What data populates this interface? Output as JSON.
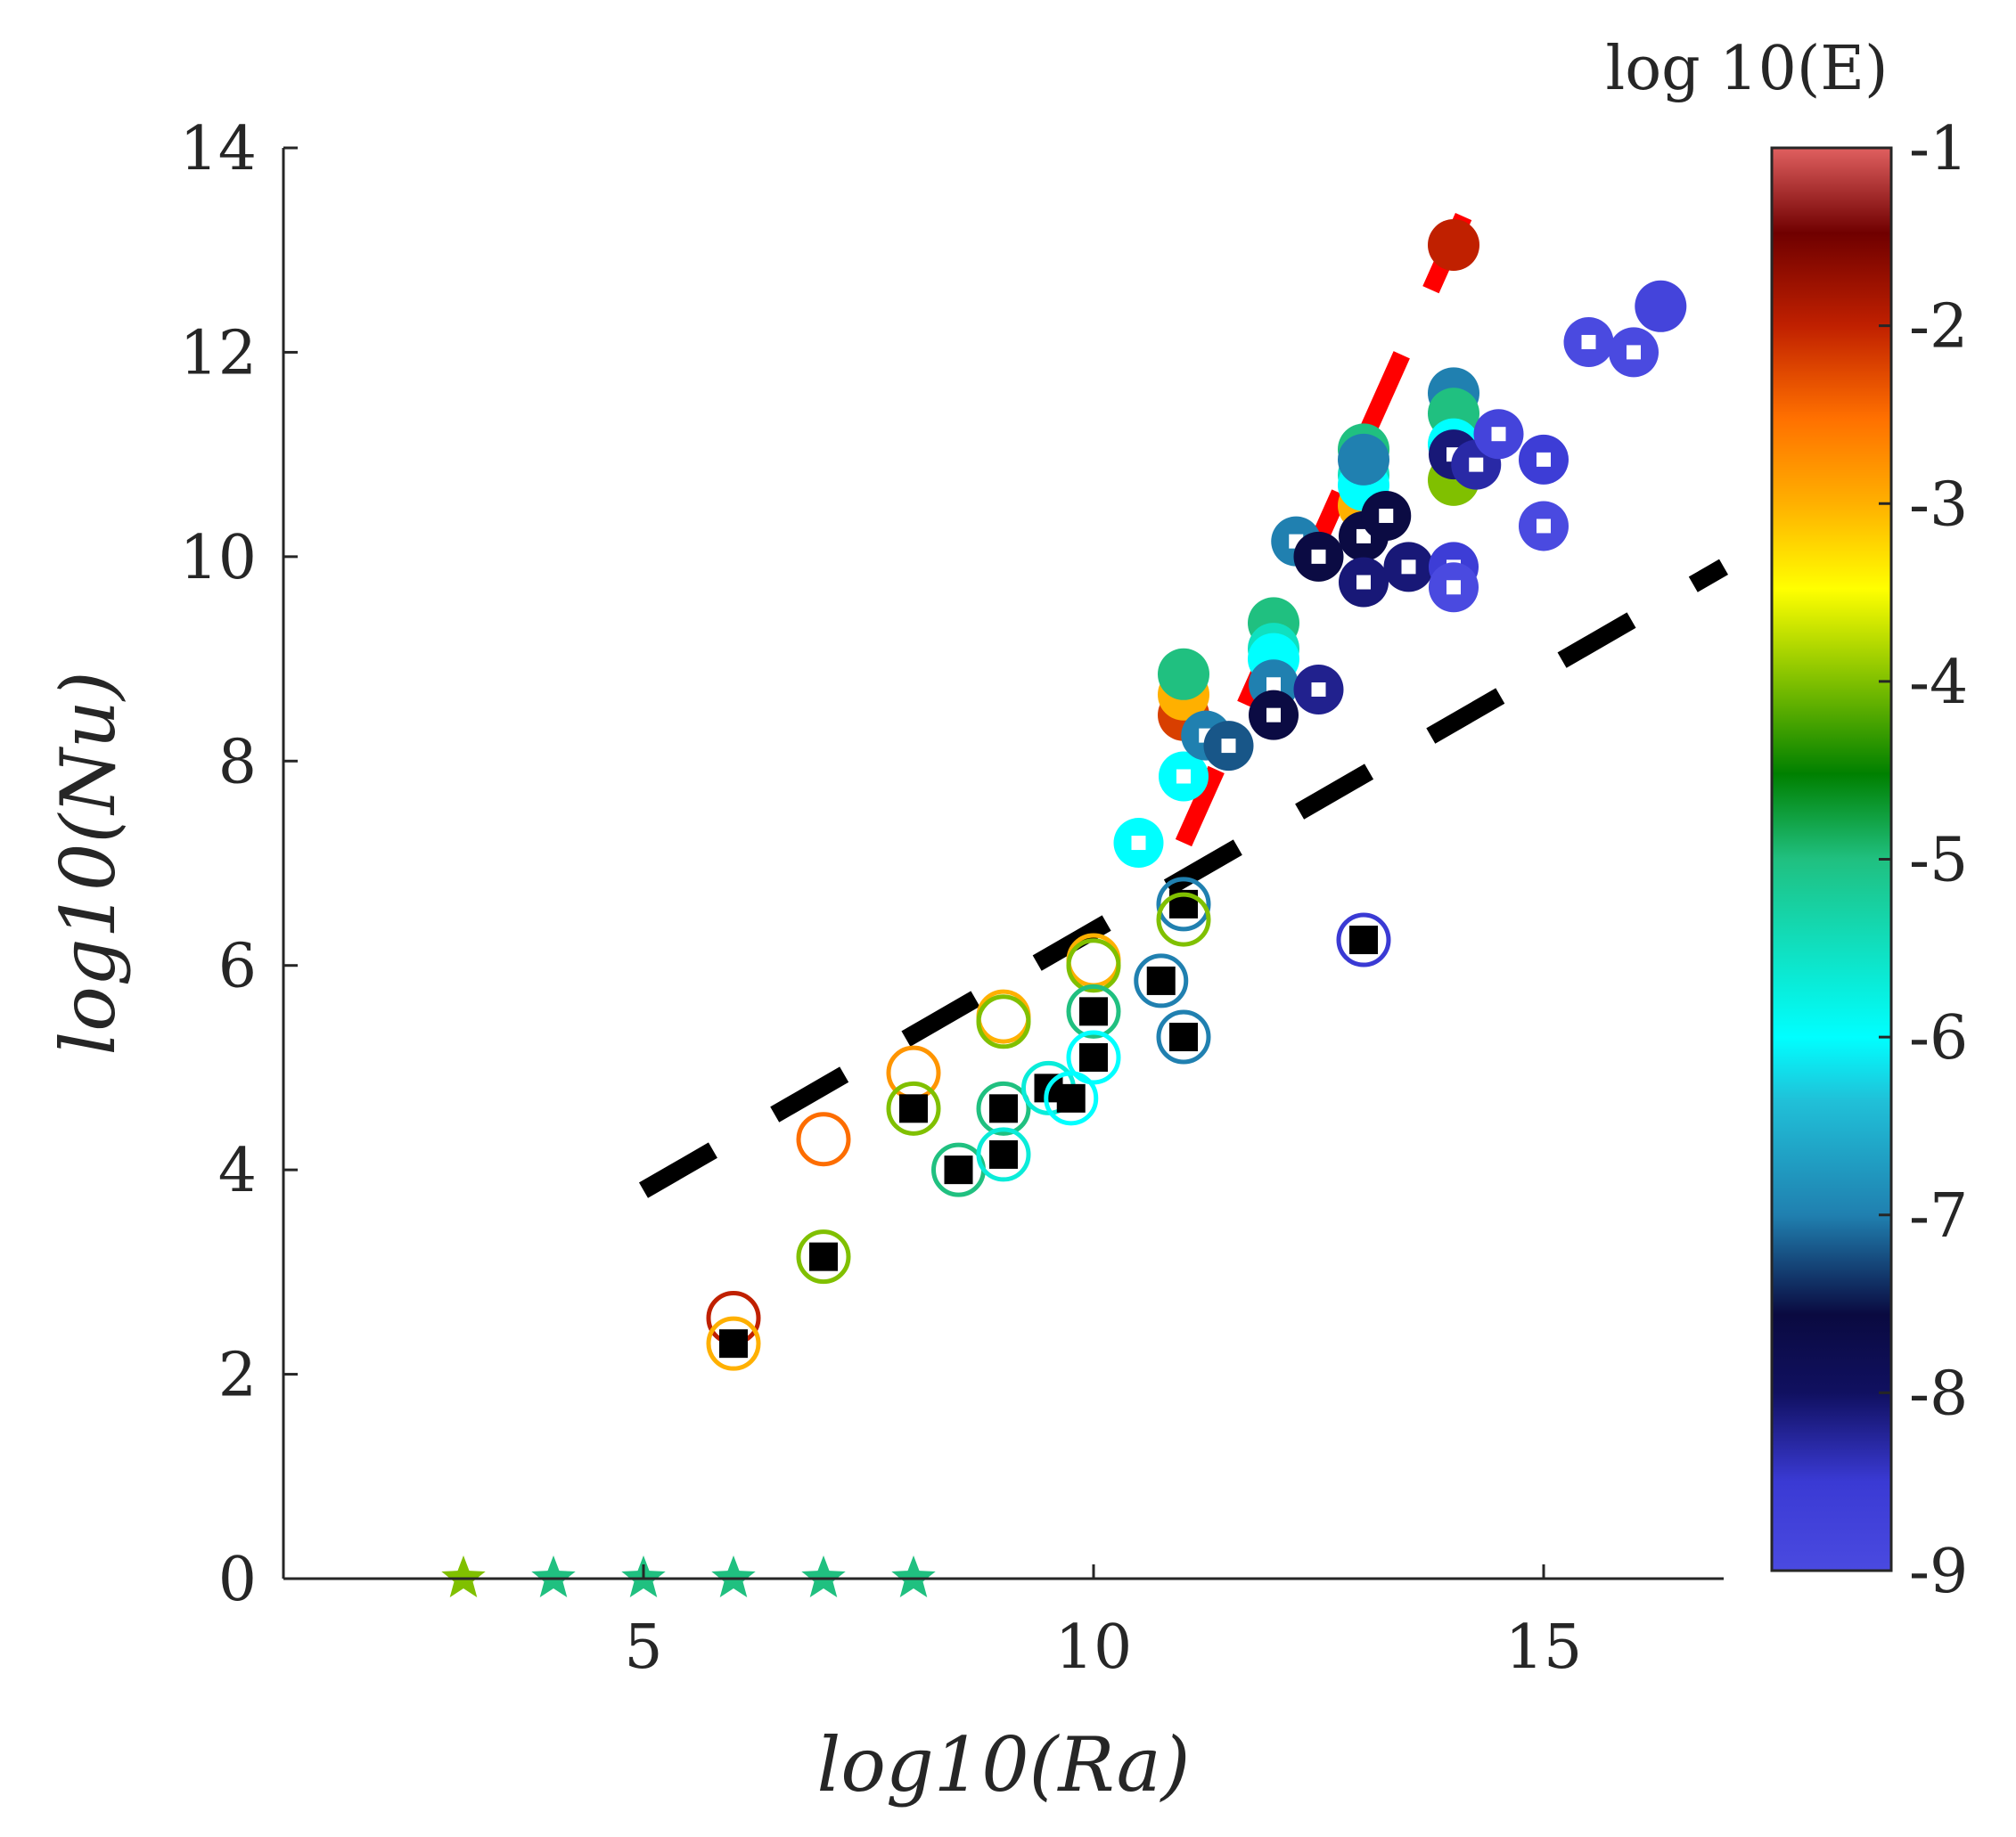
{
  "chart_data": {
    "type": "scatter",
    "xlabel": "log10(Ra)",
    "ylabel": "log10(Nu)",
    "xlim": [
      1,
      17
    ],
    "ylim": [
      0,
      14
    ],
    "xticks": [
      5,
      10,
      15
    ],
    "yticks": [
      0,
      2,
      4,
      6,
      8,
      10,
      12,
      14
    ],
    "grid": false,
    "colorbar": {
      "title": "log 10(E)",
      "range": [
        -9,
        -1
      ],
      "ticks": [
        -1,
        -2,
        -3,
        -4,
        -5,
        -6,
        -7,
        -8,
        -9
      ],
      "colormap": [
        [
          0.0,
          "#4a4ae0"
        ],
        [
          0.0625,
          "#3a3ad4"
        ],
        [
          0.125,
          "#101060"
        ],
        [
          0.18,
          "#0a0a40"
        ],
        [
          0.25,
          "#2080b0"
        ],
        [
          0.33,
          "#20c0d8"
        ],
        [
          0.375,
          "#00ffff"
        ],
        [
          0.5,
          "#20c080"
        ],
        [
          0.56,
          "#008000"
        ],
        [
          0.625,
          "#80c000"
        ],
        [
          0.69,
          "#ffff00"
        ],
        [
          0.75,
          "#ffb000"
        ],
        [
          0.81,
          "#ff7000"
        ],
        [
          0.875,
          "#c02000"
        ],
        [
          0.94,
          "#700000"
        ],
        [
          1.0,
          "#e06060"
        ]
      ]
    },
    "lines": [
      {
        "name": "black-dashed-fit",
        "color": "#000000",
        "x": [
          5,
          17
        ],
        "y": [
          3.8,
          9.9
        ]
      },
      {
        "name": "red-dashed-fit",
        "color": "#ff0000",
        "x": [
          11,
          14.4
        ],
        "y": [
          7.2,
          13.9
        ]
      }
    ],
    "series": [
      {
        "name": "open-circles-with-black-squares",
        "marker": "open-circle",
        "points": [
          {
            "x": 6,
            "y": 2.55,
            "e": -2.0,
            "sq": false
          },
          {
            "x": 6,
            "y": 2.3,
            "e": -3.0,
            "sq": true
          },
          {
            "x": 7,
            "y": 4.3,
            "e": -2.5,
            "sq": false
          },
          {
            "x": 7,
            "y": 3.15,
            "e": -4.0,
            "sq": true
          },
          {
            "x": 8,
            "y": 4.95,
            "e": -2.8,
            "sq": false
          },
          {
            "x": 8,
            "y": 4.6,
            "e": -4.0,
            "sq": true
          },
          {
            "x": 8.5,
            "y": 4.0,
            "e": -5.0,
            "sq": true
          },
          {
            "x": 9,
            "y": 5.5,
            "e": -3.0,
            "sq": false
          },
          {
            "x": 9,
            "y": 5.45,
            "e": -4.0,
            "sq": false
          },
          {
            "x": 9,
            "y": 4.6,
            "e": -5.0,
            "sq": true
          },
          {
            "x": 9,
            "y": 4.15,
            "e": -5.7,
            "sq": true
          },
          {
            "x": 9.5,
            "y": 4.8,
            "e": -5.7,
            "sq": true
          },
          {
            "x": 9.75,
            "y": 4.7,
            "e": -6.0,
            "sq": true
          },
          {
            "x": 10,
            "y": 6.05,
            "e": -3.0,
            "sq": false
          },
          {
            "x": 10,
            "y": 6.0,
            "e": -4.0,
            "sq": false
          },
          {
            "x": 10,
            "y": 5.55,
            "e": -5.0,
            "sq": true
          },
          {
            "x": 10,
            "y": 5.1,
            "e": -6.0,
            "sq": true
          },
          {
            "x": 10.75,
            "y": 5.85,
            "e": -7.0,
            "sq": true
          },
          {
            "x": 11,
            "y": 6.6,
            "e": -7.0,
            "sq": true
          },
          {
            "x": 11,
            "y": 6.45,
            "e": -4.0,
            "sq": false
          },
          {
            "x": 11,
            "y": 5.3,
            "e": -7.0,
            "sq": true
          },
          {
            "x": 13,
            "y": 6.25,
            "e": -8.5,
            "sq": true
          }
        ]
      },
      {
        "name": "filled-circles",
        "marker": "filled-circle",
        "points": [
          {
            "x": 11,
            "y": 8.45,
            "e": -2.2
          },
          {
            "x": 11,
            "y": 8.65,
            "e": -3.0
          },
          {
            "x": 11,
            "y": 8.85,
            "e": -5.0
          },
          {
            "x": 12,
            "y": 9.35,
            "e": -5.0
          },
          {
            "x": 12,
            "y": 9.1,
            "e": -5.5
          },
          {
            "x": 12,
            "y": 9.0,
            "e": -6.0
          },
          {
            "x": 13,
            "y": 11.05,
            "e": -5.0
          },
          {
            "x": 13,
            "y": 10.8,
            "e": -5.5
          },
          {
            "x": 13,
            "y": 10.5,
            "e": -3.0
          },
          {
            "x": 13,
            "y": 10.7,
            "e": -6.0
          },
          {
            "x": 13,
            "y": 10.95,
            "e": -7.0
          },
          {
            "x": 14,
            "y": 13.05,
            "e": -2.0
          },
          {
            "x": 14,
            "y": 11.6,
            "e": -7.0
          },
          {
            "x": 14,
            "y": 11.4,
            "e": -5.0
          },
          {
            "x": 14,
            "y": 11.1,
            "e": -6.0
          },
          {
            "x": 14,
            "y": 10.75,
            "e": -4.0
          },
          {
            "x": 16.3,
            "y": 12.45,
            "e": -8.8
          }
        ]
      },
      {
        "name": "ring-with-white-square",
        "marker": "ring-square",
        "points": [
          {
            "x": 10.5,
            "y": 7.2,
            "e": -6.0
          },
          {
            "x": 11,
            "y": 7.85,
            "e": -6.0
          },
          {
            "x": 11.25,
            "y": 8.25,
            "e": -7.0
          },
          {
            "x": 11.5,
            "y": 8.15,
            "e": -7.2
          },
          {
            "x": 12,
            "y": 8.75,
            "e": -7.0
          },
          {
            "x": 12,
            "y": 8.45,
            "e": -7.6
          },
          {
            "x": 12.25,
            "y": 10.15,
            "e": -7.0
          },
          {
            "x": 12.5,
            "y": 10.0,
            "e": -7.6
          },
          {
            "x": 12.5,
            "y": 8.7,
            "e": -8.2
          },
          {
            "x": 13,
            "y": 10.2,
            "e": -7.6
          },
          {
            "x": 13,
            "y": 9.75,
            "e": -8.1
          },
          {
            "x": 13.25,
            "y": 10.4,
            "e": -7.6
          },
          {
            "x": 13.5,
            "y": 9.9,
            "e": -8.1
          },
          {
            "x": 14,
            "y": 11.0,
            "e": -8.1
          },
          {
            "x": 14.25,
            "y": 10.9,
            "e": -8.3
          },
          {
            "x": 14,
            "y": 9.9,
            "e": -8.6
          },
          {
            "x": 14,
            "y": 9.7,
            "e": -9.0
          },
          {
            "x": 14.5,
            "y": 11.2,
            "e": -8.8
          },
          {
            "x": 15,
            "y": 10.95,
            "e": -8.6
          },
          {
            "x": 15,
            "y": 10.3,
            "e": -9.0
          },
          {
            "x": 15.5,
            "y": 12.1,
            "e": -9.0
          },
          {
            "x": 16,
            "y": 12.0,
            "e": -9.0
          }
        ]
      },
      {
        "name": "stars",
        "marker": "star",
        "points": [
          {
            "x": 3,
            "y": 0,
            "e": -4.0
          },
          {
            "x": 4,
            "y": 0,
            "e": -5.0
          },
          {
            "x": 5,
            "y": 0,
            "e": -5.0
          },
          {
            "x": 6,
            "y": 0,
            "e": -5.0
          },
          {
            "x": 7,
            "y": 0,
            "e": -5.0
          },
          {
            "x": 8,
            "y": 0,
            "e": -5.0
          }
        ]
      }
    ]
  }
}
